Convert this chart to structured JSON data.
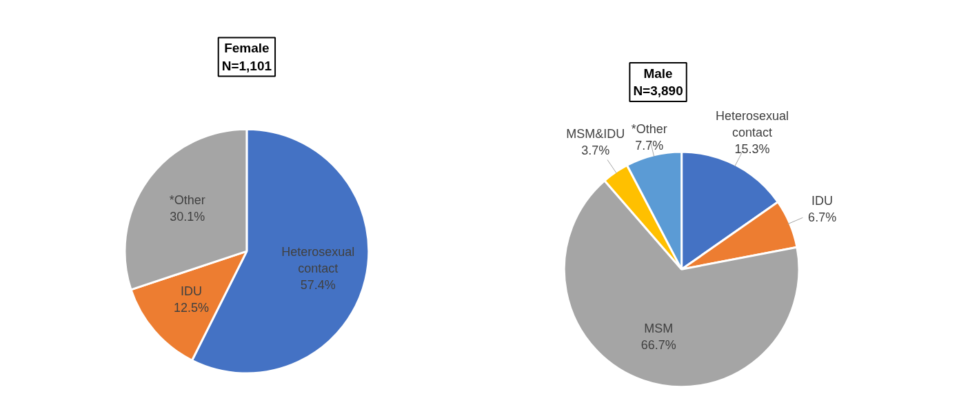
{
  "chart_data": [
    {
      "type": "pie",
      "title": "Female",
      "subtitle": "N=1,101",
      "categories": [
        "Heterosexual\ncontact",
        "IDU",
        "*Other"
      ],
      "values": [
        57.4,
        12.5,
        30.1
      ],
      "colors": [
        "#4472c4",
        "#ed7d31",
        "#a5a5a5"
      ],
      "value_labels": [
        "57.4%",
        "12.5%",
        "30.1%"
      ]
    },
    {
      "type": "pie",
      "title": "Male",
      "subtitle": "N=3,890",
      "categories": [
        "Heterosexual\ncontact",
        "IDU",
        "MSM",
        "MSM&IDU",
        "*Other"
      ],
      "values": [
        15.3,
        6.7,
        66.7,
        3.7,
        7.7
      ],
      "colors": [
        "#4472c4",
        "#ed7d31",
        "#a5a5a5",
        "#ffc000",
        "#5b9bd5"
      ],
      "value_labels": [
        "15.3%",
        "6.7%",
        "66.7%",
        "3.7%",
        "7.7%"
      ]
    }
  ]
}
